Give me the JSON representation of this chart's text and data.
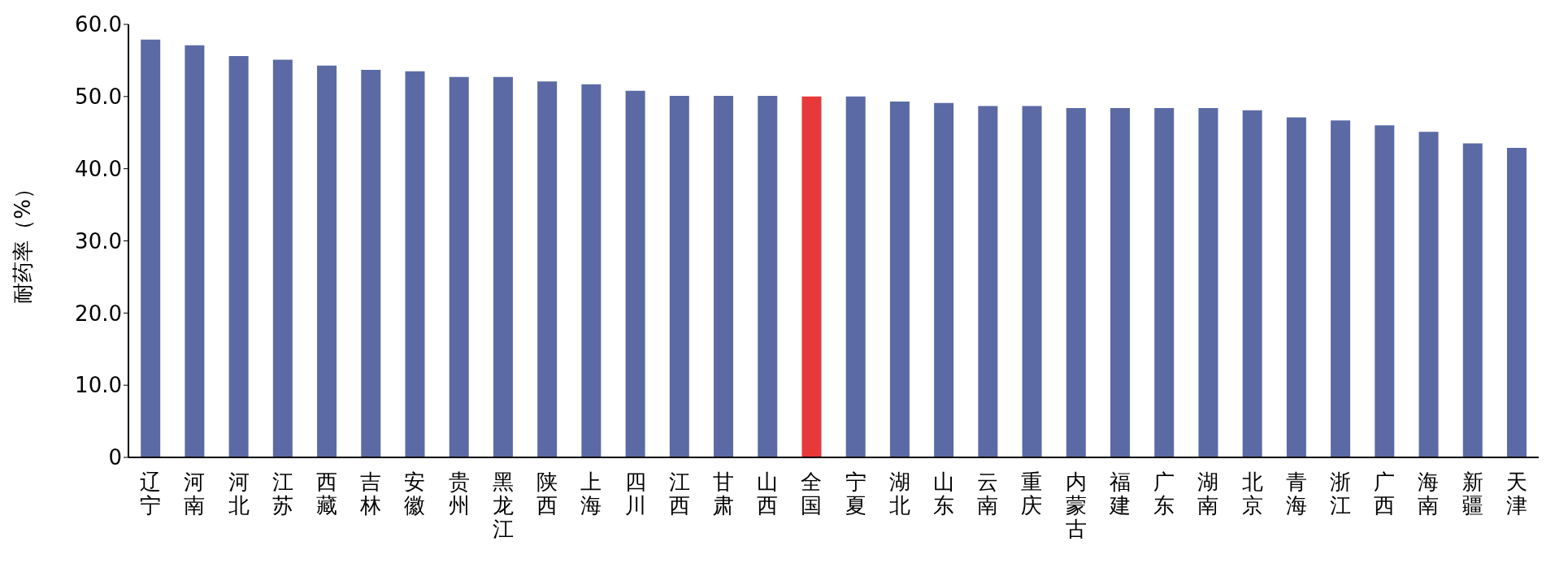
{
  "chart_data": {
    "type": "bar",
    "ylabel": "耐药率（%）",
    "categories": [
      "辽宁",
      "河南",
      "河北",
      "江苏",
      "西藏",
      "吉林",
      "安徽",
      "贵州",
      "黑龙江",
      "陕西",
      "上海",
      "四川",
      "江西",
      "甘肃",
      "山西",
      "全国",
      "宁夏",
      "湖北",
      "山东",
      "云南",
      "重庆",
      "内蒙古",
      "福建",
      "广东",
      "湖南",
      "北京",
      "青海",
      "浙江",
      "广西",
      "海南",
      "新疆",
      "天津"
    ],
    "values": [
      57.9,
      57.1,
      55.6,
      55.1,
      54.3,
      53.7,
      53.5,
      52.7,
      52.7,
      52.1,
      51.7,
      50.8,
      50.1,
      50.1,
      50.1,
      50.0,
      50.0,
      49.3,
      49.1,
      48.7,
      48.7,
      48.4,
      48.4,
      48.4,
      48.4,
      48.1,
      47.1,
      46.7,
      46.0,
      45.1,
      43.5,
      42.9
    ],
    "colors": [
      "#5b6aa5",
      "#5b6aa5",
      "#5b6aa5",
      "#5b6aa5",
      "#5b6aa5",
      "#5b6aa5",
      "#5b6aa5",
      "#5b6aa5",
      "#5b6aa5",
      "#5b6aa5",
      "#5b6aa5",
      "#5b6aa5",
      "#5b6aa5",
      "#5b6aa5",
      "#5b6aa5",
      "#e8393a",
      "#5b6aa5",
      "#5b6aa5",
      "#5b6aa5",
      "#5b6aa5",
      "#5b6aa5",
      "#5b6aa5",
      "#5b6aa5",
      "#5b6aa5",
      "#5b6aa5",
      "#5b6aa5",
      "#5b6aa5",
      "#5b6aa5",
      "#5b6aa5",
      "#5b6aa5",
      "#5b6aa5",
      "#5b6aa5"
    ],
    "ylim": [
      0,
      60
    ],
    "yticks": [
      0,
      {
        "value": 10,
        "label": "10.0"
      },
      {
        "value": 20,
        "label": "20.0"
      },
      {
        "value": 30,
        "label": "30.0"
      },
      {
        "value": 40,
        "label": "40.0"
      },
      {
        "value": 50,
        "label": "50.0"
      },
      {
        "value": 60,
        "label": "60.0"
      }
    ],
    "grid": false
  }
}
